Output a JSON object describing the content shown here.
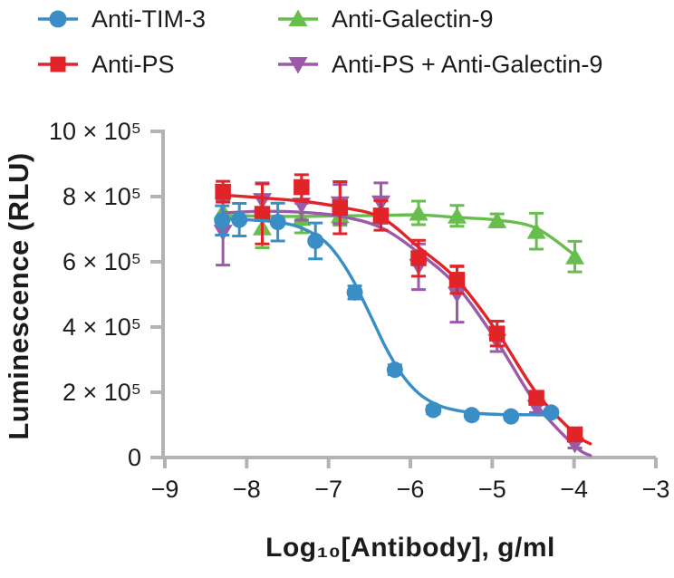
{
  "chart_data": {
    "type": "line",
    "title": "",
    "xlabel": "Log₁₀[Antibody], g/ml",
    "ylabel": "Luminescence (RLU)",
    "y_unit": "x10^5 RLU",
    "grid": false,
    "legend_position": "top",
    "x_axis": {
      "min": -9,
      "max": -3,
      "ticks": [
        -9,
        -8,
        -7,
        -6,
        -5,
        -4,
        -3
      ],
      "tick_labels": [
        "−9",
        "−8",
        "−7",
        "−6",
        "−5",
        "−4",
        "−3"
      ]
    },
    "y_axis": {
      "min": 0,
      "max": 10,
      "ticks": [
        0,
        2,
        4,
        6,
        8,
        10
      ],
      "tick_labels": [
        "0",
        "2 × 10⁵",
        "4 × 10⁵",
        "6 × 10⁵",
        "8 × 10⁵",
        "10 × 10⁵"
      ]
    },
    "series": [
      {
        "name": "Anti-TIM-3",
        "marker": "circle",
        "color": "#3A8EC6",
        "x": [
          -8.3,
          -8.09,
          -7.62,
          -7.16,
          -6.68,
          -6.19,
          -5.72,
          -5.25,
          -4.77,
          -4.28
        ],
        "y": [
          7.27,
          7.29,
          7.22,
          6.64,
          5.06,
          2.69,
          1.46,
          1.3,
          1.26,
          1.38
        ],
        "err": [
          0.45,
          0.5,
          0.58,
          0.55,
          0.2,
          0.15,
          0.12,
          0.1,
          0.1,
          0.1
        ],
        "curve": {
          "x": [
            -8.3,
            -8.0,
            -7.7,
            -7.4,
            -7.1,
            -6.9,
            -6.7,
            -6.5,
            -6.3,
            -6.1,
            -5.9,
            -5.7,
            -5.5,
            -5.2,
            -4.9,
            -4.55,
            -4.22
          ],
          "y": [
            7.31,
            7.29,
            7.24,
            7.1,
            6.73,
            6.22,
            5.43,
            4.42,
            3.37,
            2.53,
            1.97,
            1.65,
            1.48,
            1.36,
            1.32,
            1.31,
            1.3
          ]
        }
      },
      {
        "name": "Anti-PS",
        "marker": "square",
        "color": "#E02428",
        "x": [
          -8.29,
          -7.81,
          -7.33,
          -6.86,
          -6.36,
          -5.9,
          -5.43,
          -4.94,
          -4.46,
          -3.99
        ],
        "y": [
          8.15,
          7.47,
          8.29,
          7.66,
          7.42,
          6.11,
          5.45,
          3.8,
          1.83,
          0.71
        ],
        "err": [
          0.32,
          0.92,
          0.38,
          0.8,
          0.45,
          0.55,
          0.42,
          0.38,
          0.15,
          0.1
        ],
        "curve": {
          "x": [
            -8.29,
            -7.81,
            -7.33,
            -6.86,
            -6.36,
            -5.9,
            -5.43,
            -4.94,
            -4.46,
            -3.99,
            -3.8
          ],
          "y": [
            8.05,
            7.96,
            7.86,
            7.68,
            7.36,
            6.45,
            5.45,
            3.85,
            1.98,
            0.73,
            0.42
          ]
        }
      },
      {
        "name": "Anti-Galectin-9",
        "marker": "triangle-up",
        "color": "#67BE4D",
        "x": [
          -8.29,
          -7.81,
          -7.33,
          -6.86,
          -6.36,
          -5.9,
          -5.43,
          -4.94,
          -4.46,
          -3.99
        ],
        "y": [
          7.55,
          7.05,
          7.34,
          7.42,
          7.4,
          7.5,
          7.41,
          7.27,
          6.94,
          6.16
        ],
        "err": [
          0.3,
          0.62,
          0.45,
          0.3,
          0.2,
          0.36,
          0.32,
          0.2,
          0.55,
          0.47
        ],
        "curve": {
          "x": [
            -8.29,
            -7.81,
            -7.33,
            -6.86,
            -6.36,
            -5.9,
            -5.43,
            -4.94,
            -4.46,
            -3.99
          ],
          "y": [
            7.42,
            7.4,
            7.39,
            7.41,
            7.42,
            7.44,
            7.36,
            7.28,
            7.03,
            6.2
          ]
        }
      },
      {
        "name": "Anti-PS + Anti-Galectin-9",
        "marker": "triangle-down",
        "color": "#9C5BA8",
        "x": [
          -8.29,
          -7.81,
          -7.33,
          -6.86,
          -6.36,
          -5.9,
          -5.43,
          -4.94,
          -4.46,
          -3.99
        ],
        "y": [
          6.9,
          7.87,
          7.73,
          7.77,
          7.8,
          5.85,
          5.0,
          3.55,
          1.53,
          0.39
        ],
        "err": [
          1.0,
          0.55,
          0.45,
          0.6,
          0.62,
          0.7,
          0.85,
          0.3,
          0.15,
          0.1
        ],
        "curve": {
          "x": [
            -8.29,
            -7.81,
            -7.33,
            -6.86,
            -6.36,
            -5.9,
            -5.43,
            -4.94,
            -4.46,
            -3.99,
            -3.8
          ],
          "y": [
            7.5,
            7.55,
            7.52,
            7.4,
            7.05,
            6.28,
            5.25,
            3.55,
            1.63,
            0.35,
            0.06
          ]
        }
      }
    ],
    "draw_order": [
      2,
      3,
      1,
      0
    ]
  },
  "colors": {
    "axis": "#b3b3b5",
    "text": "#1b1b1b"
  }
}
